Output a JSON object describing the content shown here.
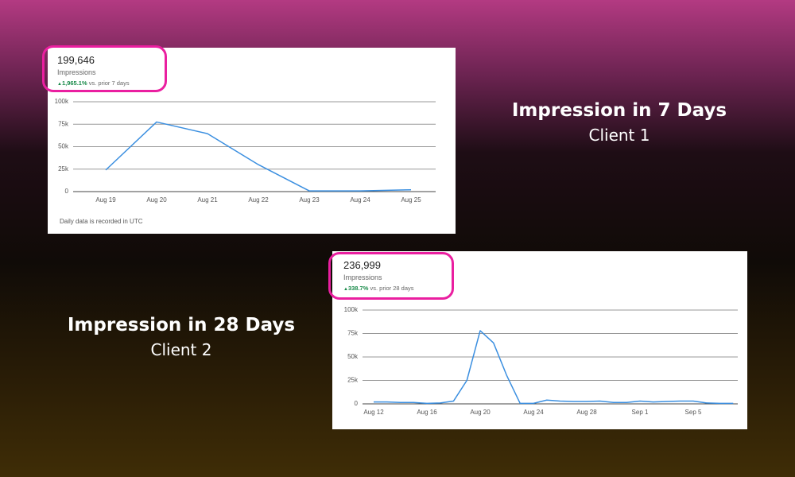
{
  "captions": [
    {
      "heading": "Impression in 7 Days",
      "client": "Client 1"
    },
    {
      "heading": "Impression in 28 Days",
      "client": "Client 2"
    }
  ],
  "chart_data": [
    {
      "type": "line",
      "title": "199,646",
      "subtitle": "Impressions",
      "change": "1,965.1%",
      "change_note": "vs. prior 7 days",
      "note": "Daily data is recorded in UTC",
      "categories": [
        "Aug 19",
        "Aug 20",
        "Aug 21",
        "Aug 22",
        "Aug 23",
        "Aug 24",
        "Aug 25"
      ],
      "series": [
        {
          "name": "Impressions",
          "color": "#3b8fe0",
          "values": [
            24000,
            77500,
            64500,
            30000,
            800,
            800,
            2000
          ]
        }
      ],
      "ylim": [
        0,
        100000
      ],
      "yticks": [
        0,
        {
          "value": 25000,
          "label": "25k"
        },
        {
          "value": 50000,
          "label": "50k"
        },
        {
          "value": 75000,
          "label": "75k"
        },
        {
          "value": 100000,
          "label": "100k"
        }
      ],
      "grid": true
    },
    {
      "type": "line",
      "title": "236,999",
      "subtitle": "Impressions",
      "change": "338.7%",
      "change_note": "vs. prior 28 days",
      "categories": [
        "Aug 12",
        null,
        null,
        null,
        "Aug 16",
        null,
        null,
        null,
        "Aug 20",
        null,
        null,
        null,
        "Aug 24",
        null,
        null,
        null,
        "Aug 28",
        null,
        null,
        null,
        "Sep 1",
        null,
        null,
        null,
        "Sep 5",
        null,
        null,
        null
      ],
      "series": [
        {
          "name": "Impressions",
          "color": "#3b8fe0",
          "values": [
            2000,
            2000,
            1500,
            1500,
            500,
            1000,
            3000,
            25000,
            78000,
            65000,
            30000,
            500,
            500,
            4000,
            3000,
            2500,
            2500,
            3000,
            1500,
            1500,
            3000,
            2000,
            2500,
            3000,
            3000,
            1000,
            500,
            500
          ]
        }
      ],
      "ylim": [
        0,
        100000
      ],
      "yticks": [
        0,
        {
          "value": 25000,
          "label": "25k"
        },
        {
          "value": 50000,
          "label": "50k"
        },
        {
          "value": 75000,
          "label": "75k"
        },
        {
          "value": 100000,
          "label": "100k"
        }
      ],
      "grid": true
    }
  ]
}
